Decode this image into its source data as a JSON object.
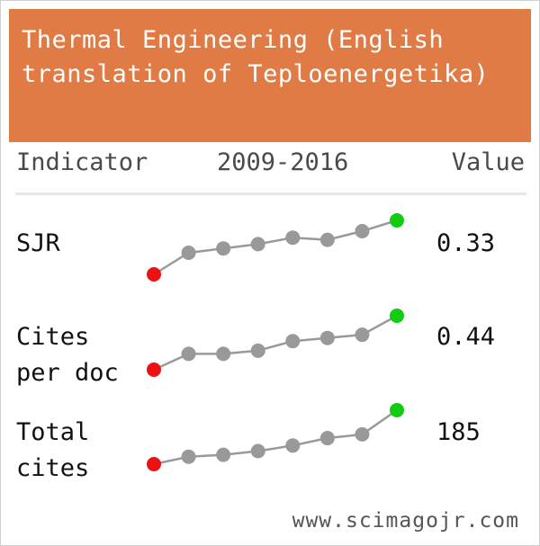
{
  "widget": {
    "title": "Thermal Engineering (English translation of Teploenergetika)",
    "header": {
      "indicator": "Indicator",
      "period": "2009-2016",
      "value": "Value"
    },
    "rows": [
      {
        "label_line1": "SJR",
        "label_line2": "",
        "value": "0.33",
        "trend": [
          0.08,
          0.18,
          0.2,
          0.22,
          0.25,
          0.24,
          0.28,
          0.33
        ]
      },
      {
        "label_line1": "Cites",
        "label_line2": "per doc",
        "value": "0.44",
        "trend": [
          0.1,
          0.2,
          0.2,
          0.22,
          0.28,
          0.3,
          0.32,
          0.44
        ]
      },
      {
        "label_line1": "Total",
        "label_line2": "cites",
        "value": "185",
        "trend": [
          40,
          60,
          65,
          75,
          90,
          110,
          120,
          185
        ]
      }
    ],
    "footer": "www.scimagojr.com",
    "colors": {
      "title_bg": "#e07b45",
      "start_point": "#ee1111",
      "mid_point": "#999999",
      "end_point": "#11cc11",
      "line": "#999999"
    }
  }
}
